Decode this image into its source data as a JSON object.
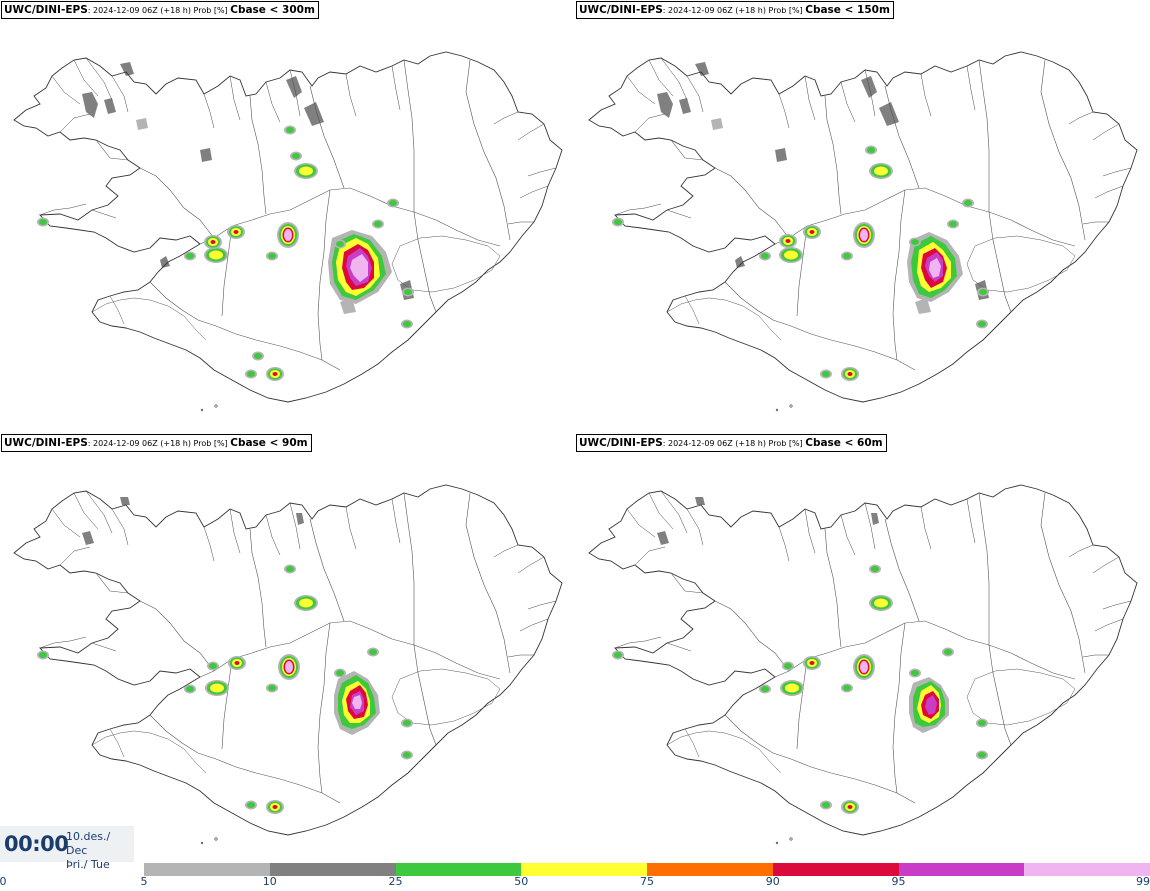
{
  "panels": [
    {
      "source": "UWC/DINI-EPS",
      "meta": ": 2024-12-09 06Z (+18 h) Prob [%] ",
      "variable": "Cbase < 300m"
    },
    {
      "source": "UWC/DINI-EPS",
      "meta": ": 2024-12-09 06Z (+18 h) Prob [%] ",
      "variable": "Cbase < 150m"
    },
    {
      "source": "UWC/DINI-EPS",
      "meta": ": 2024-12-09 06Z (+18 h) Prob [%] ",
      "variable": "Cbase < 90m"
    },
    {
      "source": "UWC/DINI-EPS",
      "meta": ": 2024-12-09 06Z (+18 h) Prob [%] ",
      "variable": "Cbase < 60m"
    }
  ],
  "time": {
    "clock": "00:00",
    "date_line1": "10.des./ Dec",
    "date_line2": "Þri./ Tue"
  },
  "colorbar": {
    "ticks": [
      "0",
      "5",
      "10",
      "25",
      "50",
      "75",
      "90",
      "95",
      "99"
    ],
    "colors": [
      "#b4b4b4",
      "#808080",
      "#3ec83e",
      "#ffff32",
      "#ff6e00",
      "#dc0a3c",
      "#c83cc8",
      "#f0b4f0"
    ]
  }
}
